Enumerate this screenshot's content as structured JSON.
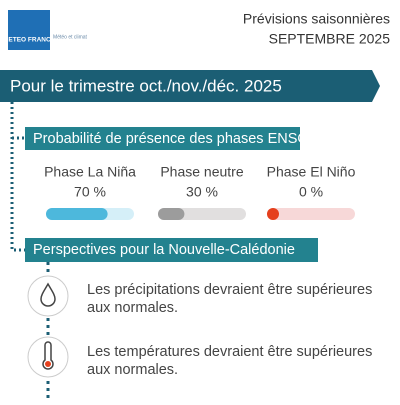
{
  "header": {
    "logo": "METEO FRANCE",
    "partner": "Météo et climat",
    "title": "Prévisions saisonnières",
    "subtitle": "SEPTEMBRE 2025"
  },
  "banner": "Pour le trimestre oct./nov./déc. 2025",
  "enso": {
    "title": "Probabilité de présence des phases ENSO",
    "xlim": [
      0,
      100
    ],
    "phases": [
      {
        "name": "Phase La Niña",
        "value": 70,
        "label": "70 %",
        "color": "#4db8dc",
        "track": "#d5eff8"
      },
      {
        "name": "Phase neutre",
        "value": 30,
        "label": "30 %",
        "color": "#9c9c9c",
        "track": "#e1dfdf"
      },
      {
        "name": "Phase El Niño",
        "value": 0,
        "label": "0 %",
        "color": "#e5401d",
        "track": "#f7d8d8"
      }
    ]
  },
  "outlook": {
    "title": "Perspectives pour la Nouvelle-Calédonie",
    "items": [
      {
        "lines": [
          "Les précipitations devraient être supérieures",
          "aux normales."
        ]
      },
      {
        "lines": [
          "Les températures devraient être supérieures",
          "aux normales."
        ]
      }
    ]
  }
}
